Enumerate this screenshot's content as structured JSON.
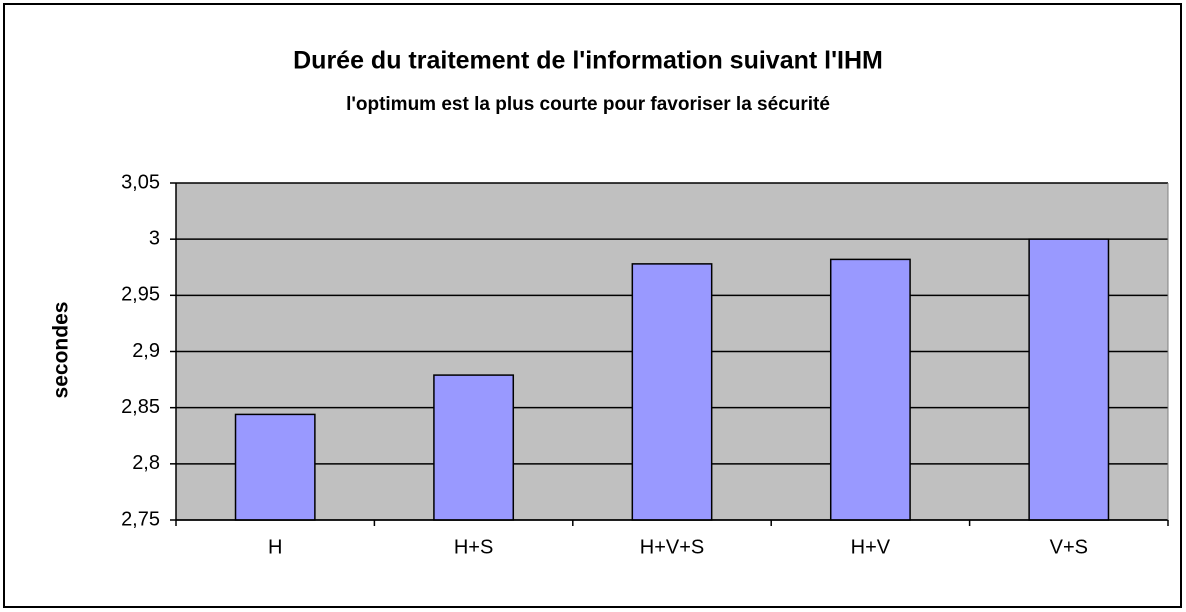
{
  "chart_data": {
    "type": "bar",
    "title": "Durée du traitement de l'information suivant l'IHM",
    "subtitle": "l'optimum est la plus courte pour favoriser la sécurité",
    "y_label": "secondes",
    "categories": [
      "H",
      "H+S",
      "H+V+S",
      "H+V",
      "V+S"
    ],
    "values": [
      2.844,
      2.879,
      2.978,
      2.982,
      3.0
    ],
    "color": "#9999ff",
    "ylim": [
      2.75,
      3.05
    ],
    "yticks": [
      {
        "value": 2.75,
        "label": "2,75"
      },
      {
        "value": 2.8,
        "label": "2,8"
      },
      {
        "value": 2.85,
        "label": "2,85"
      },
      {
        "value": 2.9,
        "label": "2,9"
      },
      {
        "value": 2.95,
        "label": "2,95"
      },
      3,
      {
        "value": 3.05,
        "label": "3,05"
      }
    ],
    "grid": true
  }
}
